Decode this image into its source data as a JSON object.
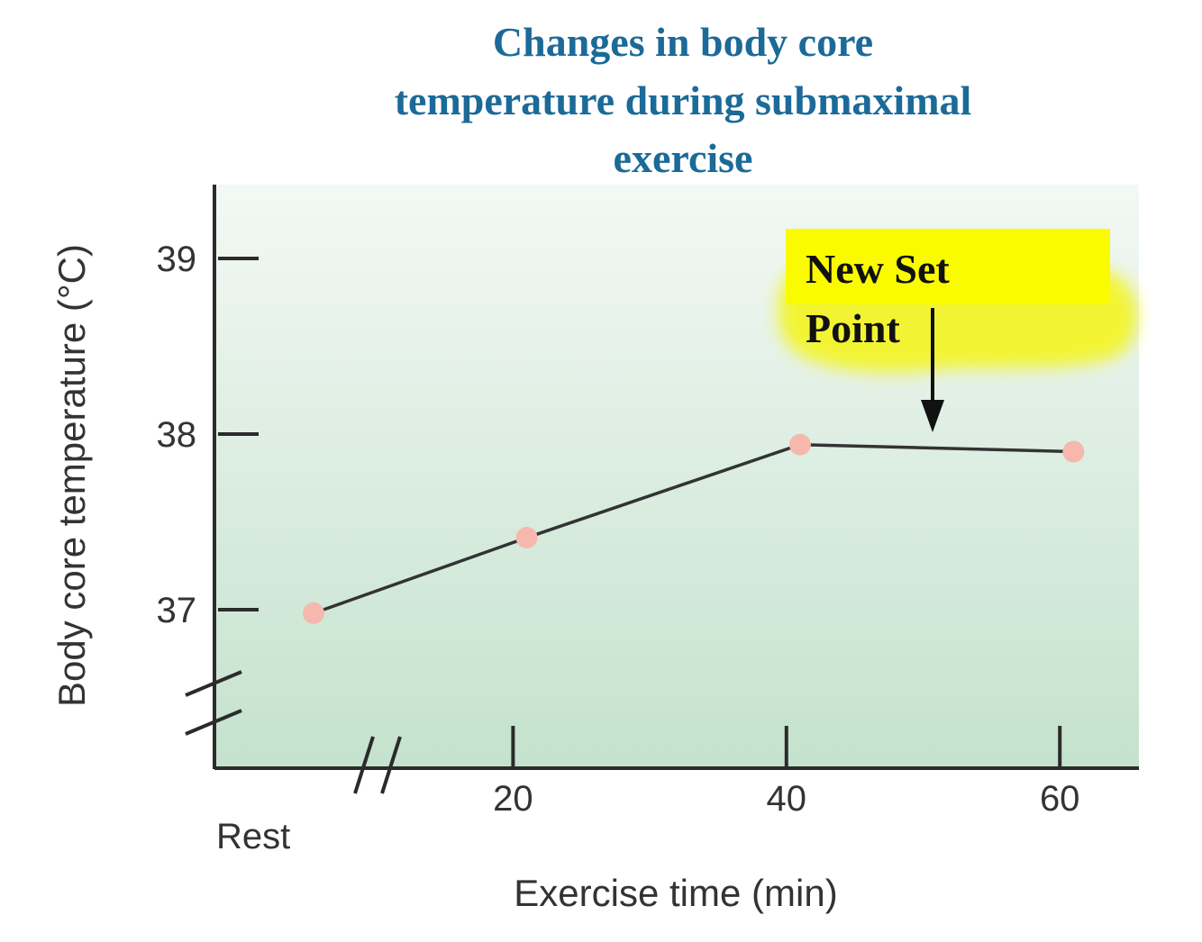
{
  "colors": {
    "title": "#1b6a98",
    "axis": "#2b2b2b",
    "line": "#333333",
    "marker": "#f6b8ad",
    "plot_bg_top": "#f3f8f4",
    "plot_bg_bottom": "#c4e2cd",
    "highlight": "#fbfb00",
    "text": "#333333"
  },
  "chart_data": {
    "type": "line",
    "title_lines": [
      "Changes in body core",
      "temperature during submaximal",
      "exercise"
    ],
    "xlabel": "Exercise time (min)",
    "ylabel": "Body core temperature (°C)",
    "x_ticks": [
      "20",
      "40",
      "60"
    ],
    "x_tick_values": [
      20,
      40,
      60
    ],
    "x_rest_label": "Rest",
    "xlim": [
      0,
      66
    ],
    "y_ticks": [
      "37",
      "38",
      "39"
    ],
    "y_tick_values": [
      37,
      38,
      39
    ],
    "ylim": [
      36.1,
      39.4
    ],
    "series": [
      {
        "name": "Body core temperature",
        "points": [
          {
            "x": 0,
            "y": 36.98,
            "label": "Rest"
          },
          {
            "x": 21,
            "y": 37.41
          },
          {
            "x": 41,
            "y": 37.94
          },
          {
            "x": 61,
            "y": 37.9
          }
        ]
      }
    ],
    "annotation": {
      "lines": [
        "New Set",
        "Point"
      ],
      "arrow_target": {
        "x": 51,
        "y": 38.0
      }
    }
  }
}
